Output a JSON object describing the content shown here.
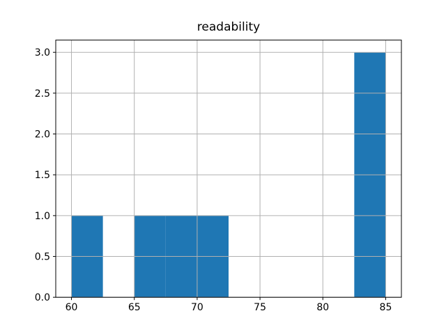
{
  "title": "readability",
  "chart_data": {
    "type": "bar",
    "subtype": "histogram",
    "title": "readability",
    "xlabel": "",
    "ylabel": "",
    "bin_edges": [
      60,
      62.5,
      65,
      67.5,
      70,
      72.5,
      75,
      77.5,
      80,
      82.5,
      85
    ],
    "counts": [
      1,
      0,
      1,
      1,
      1,
      0,
      0,
      0,
      0,
      3
    ],
    "xlim": [
      58.75,
      86.25
    ],
    "ylim": [
      0,
      3.15
    ],
    "xticks": [
      60,
      65,
      70,
      75,
      80,
      85
    ],
    "xtick_labels": [
      "60",
      "65",
      "70",
      "75",
      "80",
      "85"
    ],
    "yticks": [
      0.0,
      0.5,
      1.0,
      1.5,
      2.0,
      2.5,
      3.0
    ],
    "ytick_labels": [
      "0.0",
      "0.5",
      "1.0",
      "1.5",
      "2.0",
      "2.5",
      "3.0"
    ],
    "grid": true,
    "grid_above_bars": true,
    "legend": null,
    "colors": {
      "bar": "#1f77b4",
      "grid": "#b0b0b0",
      "spine": "#000000",
      "text": "#000000",
      "background": "#ffffff"
    }
  }
}
